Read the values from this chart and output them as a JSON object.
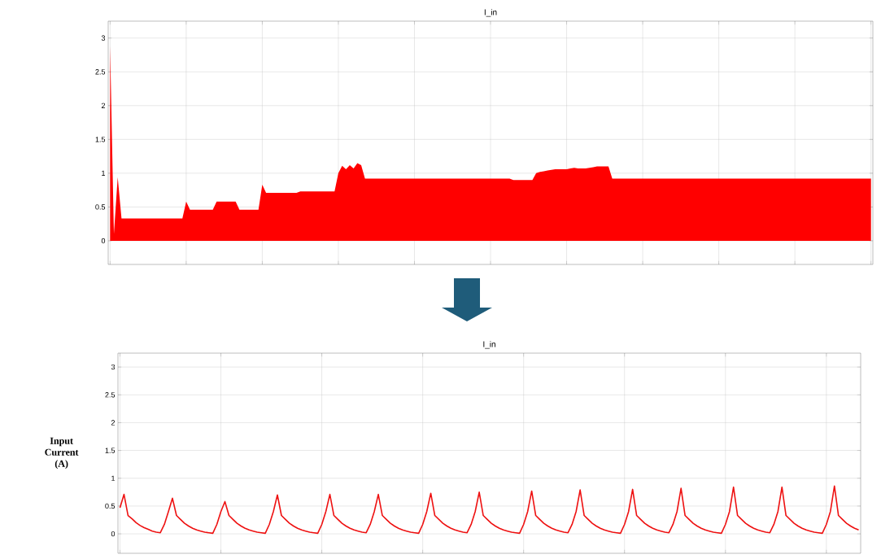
{
  "chart_data": [
    {
      "type": "area",
      "title": "I_in",
      "color": "#ff0000",
      "grid": true,
      "tick_labels": "y",
      "ylim": [
        -0.35,
        3.25
      ],
      "yticks": [
        0,
        0.5,
        1,
        1.5,
        2,
        2.5,
        3
      ],
      "categories": [
        null,
        null,
        null,
        null,
        null,
        null,
        null,
        null,
        null,
        null,
        null,
        null,
        null,
        null,
        null,
        null,
        null,
        null,
        null,
        null,
        null,
        null,
        null,
        null,
        null,
        null,
        null,
        null,
        null,
        null,
        null,
        null,
        null,
        null,
        null,
        null,
        null,
        null,
        null,
        null,
        null,
        null,
        null,
        null,
        null,
        null,
        null,
        null,
        null,
        null,
        null,
        null,
        null,
        null,
        null,
        null,
        null,
        null,
        null,
        null,
        null,
        null,
        null,
        null,
        null,
        null,
        null,
        null,
        null,
        null,
        null,
        null,
        null,
        null,
        null,
        null,
        null,
        null,
        null,
        null,
        null,
        null,
        null,
        null,
        null,
        null,
        null,
        null,
        null,
        null,
        null,
        null,
        null,
        null,
        null,
        null,
        null,
        null,
        null,
        null,
        null,
        null,
        null,
        null,
        null,
        null,
        null,
        null,
        null,
        null,
        null,
        null,
        null,
        null,
        null,
        null,
        null,
        null,
        null,
        null,
        null,
        null,
        null,
        null,
        null,
        null,
        null,
        null,
        null,
        null,
        null,
        null,
        null,
        null,
        null,
        null,
        null,
        null,
        null,
        null,
        null,
        null,
        null,
        null,
        null,
        null,
        null,
        null,
        null,
        null,
        null,
        null,
        null,
        null,
        null,
        null,
        null,
        null,
        null,
        null,
        null,
        null,
        null,
        null,
        null,
        null,
        null,
        null,
        null,
        null,
        null,
        null,
        null,
        null,
        null,
        null,
        null,
        null,
        null,
        null,
        null,
        null,
        null,
        null,
        null,
        null,
        null,
        null,
        null,
        null,
        null,
        null,
        null,
        null,
        null,
        null,
        null,
        null,
        null,
        null,
        null
      ],
      "values": [
        2.88,
        0.1,
        0.94,
        0.33,
        0.33,
        0.33,
        0.33,
        0.33,
        0.33,
        0.33,
        0.33,
        0.33,
        0.33,
        0.33,
        0.33,
        0.33,
        0.33,
        0.33,
        0.33,
        0.33,
        0.58,
        0.46,
        0.46,
        0.46,
        0.46,
        0.46,
        0.46,
        0.46,
        0.58,
        0.58,
        0.58,
        0.58,
        0.58,
        0.58,
        0.46,
        0.46,
        0.46,
        0.46,
        0.46,
        0.46,
        0.83,
        0.71,
        0.71,
        0.71,
        0.71,
        0.71,
        0.71,
        0.71,
        0.71,
        0.71,
        0.73,
        0.73,
        0.73,
        0.73,
        0.73,
        0.73,
        0.73,
        0.73,
        0.73,
        0.73,
        1.0,
        1.11,
        1.06,
        1.12,
        1.07,
        1.15,
        1.12,
        0.92,
        0.92,
        0.92,
        0.92,
        0.92,
        0.92,
        0.92,
        0.92,
        0.92,
        0.92,
        0.92,
        0.92,
        0.92,
        0.92,
        0.92,
        0.92,
        0.92,
        0.92,
        0.92,
        0.92,
        0.92,
        0.92,
        0.92,
        0.92,
        0.92,
        0.92,
        0.92,
        0.92,
        0.92,
        0.92,
        0.92,
        0.92,
        0.92,
        0.92,
        0.92,
        0.92,
        0.92,
        0.92,
        0.92,
        0.9,
        0.9,
        0.9,
        0.9,
        0.9,
        0.9,
        1.0,
        1.02,
        1.03,
        1.04,
        1.05,
        1.06,
        1.06,
        1.06,
        1.06,
        1.07,
        1.08,
        1.07,
        1.07,
        1.07,
        1.08,
        1.09,
        1.1,
        1.1,
        1.1,
        1.1,
        0.92,
        0.92,
        0.92,
        0.92,
        0.92,
        0.92,
        0.92,
        0.92,
        0.92,
        0.92,
        0.92,
        0.92,
        0.92,
        0.92,
        0.92,
        0.92,
        0.92,
        0.92,
        0.92,
        0.92,
        0.92,
        0.92,
        0.92,
        0.92,
        0.92,
        0.92,
        0.92,
        0.92,
        0.92,
        0.92,
        0.92,
        0.92,
        0.92,
        0.92,
        0.92,
        0.92,
        0.92,
        0.92,
        0.92,
        0.92,
        0.92,
        0.92,
        0.92,
        0.92,
        0.92,
        0.92,
        0.92,
        0.92,
        0.92,
        0.92,
        0.92,
        0.92,
        0.92,
        0.92,
        0.92,
        0.92,
        0.92,
        0.92,
        0.92,
        0.92,
        0.92,
        0.92,
        0.92,
        0.92,
        0.92,
        0.92,
        0.92,
        0.92,
        0.92
      ]
    },
    {
      "type": "line",
      "title": "I_in",
      "ylabel": "Input Current (A)",
      "color": "#ee1111",
      "grid": true,
      "tick_labels": "y",
      "ylim": [
        -0.35,
        3.25
      ],
      "yticks": [
        0,
        0.5,
        1,
        1.5,
        2,
        2.5,
        3
      ],
      "categories": [
        null,
        null,
        null,
        null,
        null,
        null,
        null,
        null,
        null,
        null,
        null,
        null,
        null,
        null,
        null,
        null,
        null,
        null,
        null,
        null,
        null,
        null,
        null,
        null,
        null,
        null,
        null,
        null,
        null,
        null,
        null,
        null,
        null,
        null,
        null,
        null,
        null,
        null,
        null,
        null,
        null,
        null,
        null,
        null,
        null,
        null,
        null,
        null,
        null,
        null,
        null,
        null,
        null,
        null,
        null,
        null,
        null,
        null,
        null,
        null,
        null,
        null,
        null,
        null,
        null,
        null,
        null,
        null,
        null,
        null,
        null,
        null,
        null,
        null,
        null,
        null,
        null,
        null,
        null,
        null,
        null,
        null,
        null,
        null,
        null,
        null,
        null,
        null,
        null,
        null,
        null,
        null,
        null,
        null,
        null,
        null,
        null,
        null,
        null,
        null,
        null,
        null,
        null,
        null,
        null,
        null,
        null,
        null,
        null,
        null,
        null,
        null,
        null,
        null,
        null,
        null,
        null,
        null,
        null,
        null,
        null,
        null,
        null,
        null,
        null,
        null,
        null,
        null,
        null,
        null,
        null,
        null,
        null,
        null,
        null,
        null,
        null,
        null,
        null,
        null,
        null,
        null,
        null,
        null,
        null,
        null,
        null,
        null,
        null,
        null,
        null,
        null,
        null,
        null,
        null,
        null,
        null,
        null,
        null,
        null,
        null,
        null,
        null,
        null,
        null,
        null,
        null,
        null,
        null,
        null,
        null,
        null,
        null,
        null,
        null,
        null,
        null,
        null,
        null,
        null,
        null,
        null,
        null,
        null
      ],
      "values": [
        0.47,
        0.71,
        0.33,
        0.27,
        0.2,
        0.15,
        0.11,
        0.08,
        0.05,
        0.03,
        0.02,
        0.17,
        0.4,
        0.64,
        0.33,
        0.26,
        0.19,
        0.14,
        0.1,
        0.07,
        0.05,
        0.03,
        0.02,
        0.01,
        0.17,
        0.4,
        0.58,
        0.33,
        0.26,
        0.19,
        0.14,
        0.1,
        0.07,
        0.05,
        0.03,
        0.02,
        0.01,
        0.17,
        0.4,
        0.7,
        0.33,
        0.26,
        0.19,
        0.14,
        0.1,
        0.07,
        0.05,
        0.03,
        0.02,
        0.01,
        0.17,
        0.4,
        0.71,
        0.33,
        0.26,
        0.19,
        0.14,
        0.1,
        0.07,
        0.05,
        0.03,
        0.02,
        0.17,
        0.4,
        0.71,
        0.33,
        0.26,
        0.19,
        0.14,
        0.1,
        0.07,
        0.05,
        0.03,
        0.02,
        0.01,
        0.17,
        0.4,
        0.73,
        0.33,
        0.26,
        0.19,
        0.14,
        0.1,
        0.07,
        0.05,
        0.03,
        0.02,
        0.17,
        0.4,
        0.75,
        0.33,
        0.26,
        0.19,
        0.14,
        0.1,
        0.07,
        0.05,
        0.03,
        0.02,
        0.01,
        0.17,
        0.4,
        0.77,
        0.33,
        0.26,
        0.19,
        0.14,
        0.1,
        0.07,
        0.05,
        0.03,
        0.02,
        0.17,
        0.4,
        0.79,
        0.33,
        0.26,
        0.19,
        0.14,
        0.1,
        0.07,
        0.05,
        0.03,
        0.02,
        0.01,
        0.17,
        0.4,
        0.8,
        0.33,
        0.26,
        0.19,
        0.14,
        0.1,
        0.07,
        0.05,
        0.03,
        0.02,
        0.17,
        0.4,
        0.82,
        0.33,
        0.26,
        0.19,
        0.14,
        0.1,
        0.07,
        0.05,
        0.03,
        0.02,
        0.01,
        0.17,
        0.4,
        0.84,
        0.33,
        0.26,
        0.19,
        0.14,
        0.1,
        0.07,
        0.05,
        0.03,
        0.02,
        0.17,
        0.4,
        0.84,
        0.33,
        0.26,
        0.19,
        0.14,
        0.1,
        0.07,
        0.05,
        0.03,
        0.02,
        0.01,
        0.17,
        0.4,
        0.86,
        0.33,
        0.26,
        0.19,
        0.14,
        0.1,
        0.07
      ]
    }
  ]
}
